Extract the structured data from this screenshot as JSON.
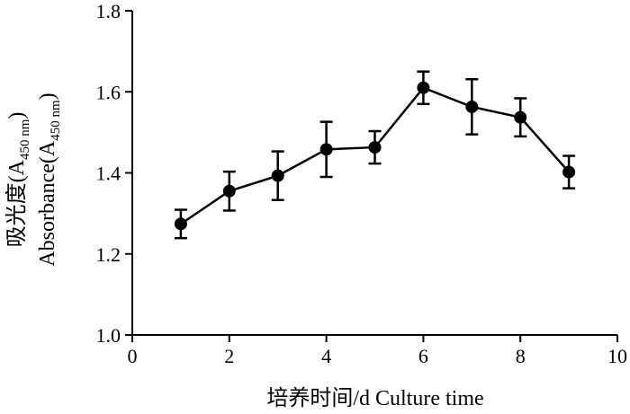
{
  "chart_data": {
    "type": "line",
    "xlabel": "培养时间/d  Culture time",
    "ylabel_line1": {
      "text": "吸光度(A",
      "sub": "450 nm",
      "end": ")"
    },
    "ylabel_line2": {
      "text": "Absorbance(A",
      "sub": "450 nm",
      "end": ")"
    },
    "xlim": [
      0,
      10
    ],
    "ylim": [
      1.0,
      1.8
    ],
    "xticks": [
      0,
      2,
      4,
      6,
      8,
      10
    ],
    "xtick_labels": [
      "0",
      "2",
      "4",
      "6",
      "8",
      "10"
    ],
    "yticks": [
      1.0,
      1.2,
      1.4,
      1.6,
      1.8
    ],
    "ytick_labels": [
      "1.0",
      "1.2",
      "1.4",
      "1.6",
      "1.8"
    ],
    "grid": false,
    "series": [
      {
        "x": [
          1,
          2,
          3,
          4,
          5,
          6,
          7,
          8,
          9
        ],
        "y": [
          1.274,
          1.355,
          1.393,
          1.458,
          1.463,
          1.61,
          1.563,
          1.537,
          1.402
        ],
        "err": [
          0.035,
          0.048,
          0.06,
          0.068,
          0.04,
          0.04,
          0.068,
          0.047,
          0.04
        ]
      }
    ]
  }
}
